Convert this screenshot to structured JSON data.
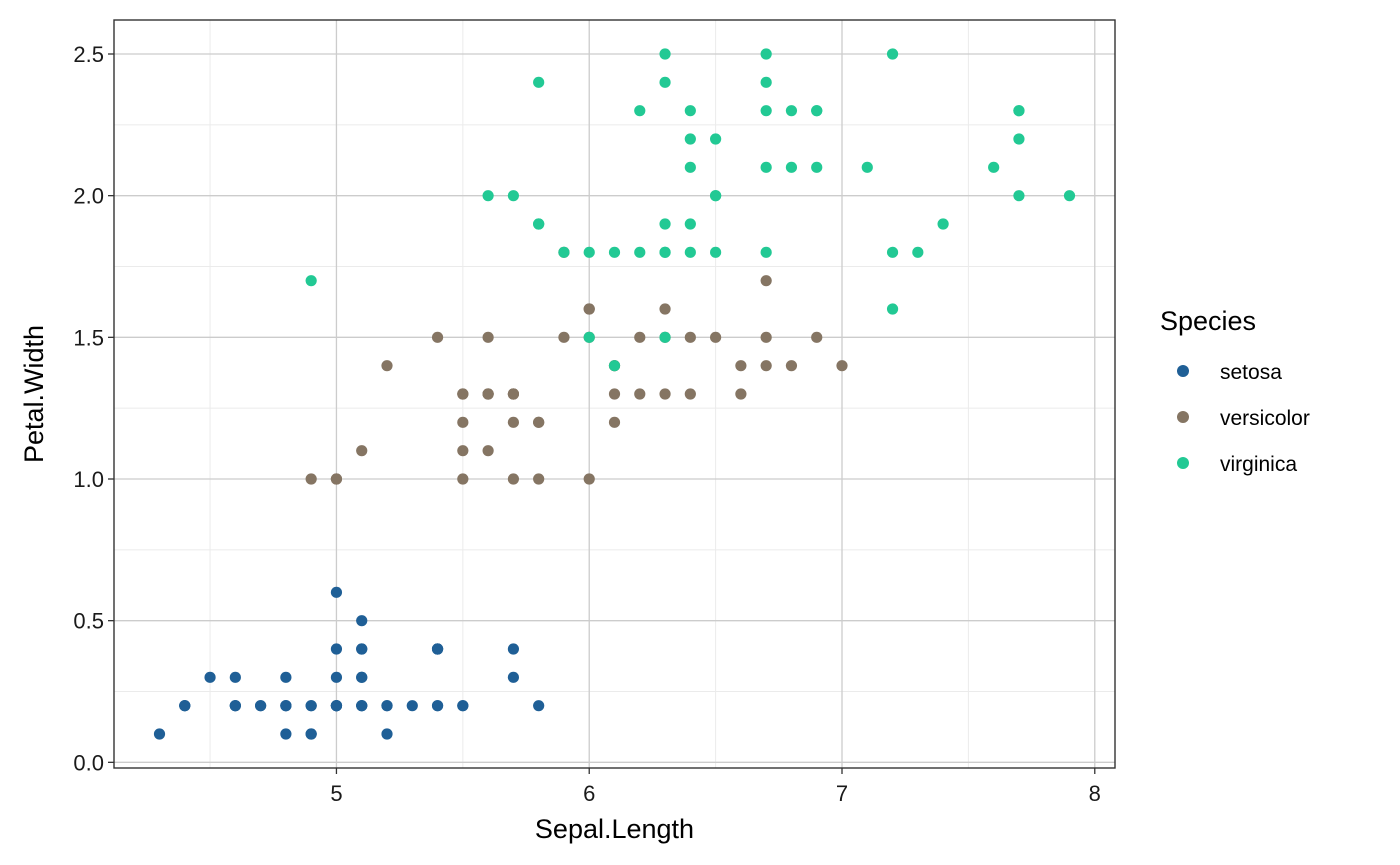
{
  "chart_data": {
    "type": "scatter",
    "xlabel": "Sepal.Length",
    "ylabel": "Petal.Width",
    "xlim": [
      4.12,
      8.08
    ],
    "ylim": [
      -0.02,
      2.62
    ],
    "x_ticks": [
      5,
      6,
      7,
      8
    ],
    "x_tick_labels": [
      "5",
      "6",
      "7",
      "8"
    ],
    "y_ticks": [
      0.0,
      0.5,
      1.0,
      1.5,
      2.0,
      2.5
    ],
    "y_tick_labels": [
      "0.0",
      "0.5",
      "1.0",
      "1.5",
      "2.0",
      "2.5"
    ],
    "grid": true,
    "legend_position": "right",
    "legend_title": "Species",
    "series": [
      {
        "name": "setosa",
        "color": "#1f5f96",
        "points": [
          [
            5.1,
            0.2
          ],
          [
            4.9,
            0.2
          ],
          [
            4.7,
            0.2
          ],
          [
            4.6,
            0.2
          ],
          [
            5.0,
            0.2
          ],
          [
            5.4,
            0.4
          ],
          [
            4.6,
            0.3
          ],
          [
            5.0,
            0.2
          ],
          [
            4.4,
            0.2
          ],
          [
            4.9,
            0.1
          ],
          [
            5.4,
            0.2
          ],
          [
            4.8,
            0.2
          ],
          [
            4.8,
            0.1
          ],
          [
            4.3,
            0.1
          ],
          [
            5.8,
            0.2
          ],
          [
            5.7,
            0.4
          ],
          [
            5.4,
            0.4
          ],
          [
            5.1,
            0.3
          ],
          [
            5.7,
            0.3
          ],
          [
            5.1,
            0.3
          ],
          [
            5.4,
            0.2
          ],
          [
            5.1,
            0.4
          ],
          [
            4.6,
            0.2
          ],
          [
            5.1,
            0.5
          ],
          [
            4.8,
            0.2
          ],
          [
            5.0,
            0.2
          ],
          [
            5.0,
            0.4
          ],
          [
            5.2,
            0.2
          ],
          [
            5.2,
            0.2
          ],
          [
            4.7,
            0.2
          ],
          [
            4.8,
            0.2
          ],
          [
            5.4,
            0.4
          ],
          [
            5.2,
            0.1
          ],
          [
            5.5,
            0.2
          ],
          [
            4.9,
            0.2
          ],
          [
            5.0,
            0.2
          ],
          [
            5.5,
            0.2
          ],
          [
            4.9,
            0.1
          ],
          [
            4.4,
            0.2
          ],
          [
            5.1,
            0.2
          ],
          [
            5.0,
            0.3
          ],
          [
            4.5,
            0.3
          ],
          [
            4.4,
            0.2
          ],
          [
            5.0,
            0.6
          ],
          [
            5.1,
            0.4
          ],
          [
            4.8,
            0.3
          ],
          [
            5.1,
            0.2
          ],
          [
            4.6,
            0.2
          ],
          [
            5.3,
            0.2
          ],
          [
            5.0,
            0.2
          ]
        ]
      },
      {
        "name": "versicolor",
        "color": "#857563",
        "points": [
          [
            7.0,
            1.4
          ],
          [
            6.4,
            1.5
          ],
          [
            6.9,
            1.5
          ],
          [
            5.5,
            1.3
          ],
          [
            6.5,
            1.5
          ],
          [
            5.7,
            1.3
          ],
          [
            6.3,
            1.6
          ],
          [
            4.9,
            1.0
          ],
          [
            6.6,
            1.3
          ],
          [
            5.2,
            1.4
          ],
          [
            5.0,
            1.0
          ],
          [
            5.9,
            1.5
          ],
          [
            6.0,
            1.0
          ],
          [
            6.1,
            1.4
          ],
          [
            5.6,
            1.3
          ],
          [
            6.7,
            1.4
          ],
          [
            5.6,
            1.5
          ],
          [
            5.8,
            1.0
          ],
          [
            6.2,
            1.5
          ],
          [
            5.6,
            1.1
          ],
          [
            5.9,
            1.8
          ],
          [
            6.1,
            1.3
          ],
          [
            6.3,
            1.5
          ],
          [
            6.1,
            1.2
          ],
          [
            6.4,
            1.3
          ],
          [
            6.6,
            1.4
          ],
          [
            6.8,
            1.4
          ],
          [
            6.7,
            1.7
          ],
          [
            6.0,
            1.5
          ],
          [
            5.7,
            1.0
          ],
          [
            5.5,
            1.1
          ],
          [
            5.5,
            1.0
          ],
          [
            5.8,
            1.2
          ],
          [
            6.0,
            1.6
          ],
          [
            5.4,
            1.5
          ],
          [
            6.0,
            1.6
          ],
          [
            6.7,
            1.5
          ],
          [
            6.3,
            1.3
          ],
          [
            5.6,
            1.3
          ],
          [
            5.5,
            1.3
          ],
          [
            5.5,
            1.2
          ],
          [
            6.1,
            1.4
          ],
          [
            5.8,
            1.2
          ],
          [
            5.0,
            1.0
          ],
          [
            5.6,
            1.3
          ],
          [
            5.7,
            1.2
          ],
          [
            5.7,
            1.3
          ],
          [
            6.2,
            1.3
          ],
          [
            5.1,
            1.1
          ],
          [
            5.7,
            1.3
          ]
        ]
      },
      {
        "name": "virginica",
        "color": "#22c994",
        "points": [
          [
            6.3,
            2.5
          ],
          [
            5.8,
            1.9
          ],
          [
            7.1,
            2.1
          ],
          [
            6.3,
            1.8
          ],
          [
            6.5,
            2.2
          ],
          [
            7.6,
            2.1
          ],
          [
            4.9,
            1.7
          ],
          [
            7.3,
            1.8
          ],
          [
            6.7,
            1.8
          ],
          [
            7.2,
            2.5
          ],
          [
            6.5,
            2.0
          ],
          [
            6.4,
            1.9
          ],
          [
            6.8,
            2.1
          ],
          [
            5.7,
            2.0
          ],
          [
            5.8,
            2.4
          ],
          [
            6.4,
            2.3
          ],
          [
            6.5,
            1.8
          ],
          [
            7.7,
            2.2
          ],
          [
            7.7,
            2.3
          ],
          [
            6.0,
            1.5
          ],
          [
            6.9,
            2.3
          ],
          [
            5.6,
            2.0
          ],
          [
            7.7,
            2.0
          ],
          [
            6.3,
            1.8
          ],
          [
            6.7,
            2.1
          ],
          [
            7.2,
            1.8
          ],
          [
            6.2,
            1.8
          ],
          [
            6.1,
            1.8
          ],
          [
            6.4,
            2.1
          ],
          [
            7.2,
            1.6
          ],
          [
            7.4,
            1.9
          ],
          [
            7.9,
            2.0
          ],
          [
            6.4,
            2.2
          ],
          [
            6.3,
            1.5
          ],
          [
            6.1,
            1.4
          ],
          [
            7.7,
            2.3
          ],
          [
            6.3,
            2.4
          ],
          [
            6.4,
            1.8
          ],
          [
            6.0,
            1.8
          ],
          [
            6.9,
            2.1
          ],
          [
            6.7,
            2.4
          ],
          [
            6.9,
            2.3
          ],
          [
            5.8,
            1.9
          ],
          [
            6.8,
            2.3
          ],
          [
            6.7,
            2.5
          ],
          [
            6.7,
            2.3
          ],
          [
            6.3,
            1.9
          ],
          [
            6.5,
            2.0
          ],
          [
            6.2,
            2.3
          ],
          [
            5.9,
            1.8
          ]
        ]
      }
    ]
  }
}
